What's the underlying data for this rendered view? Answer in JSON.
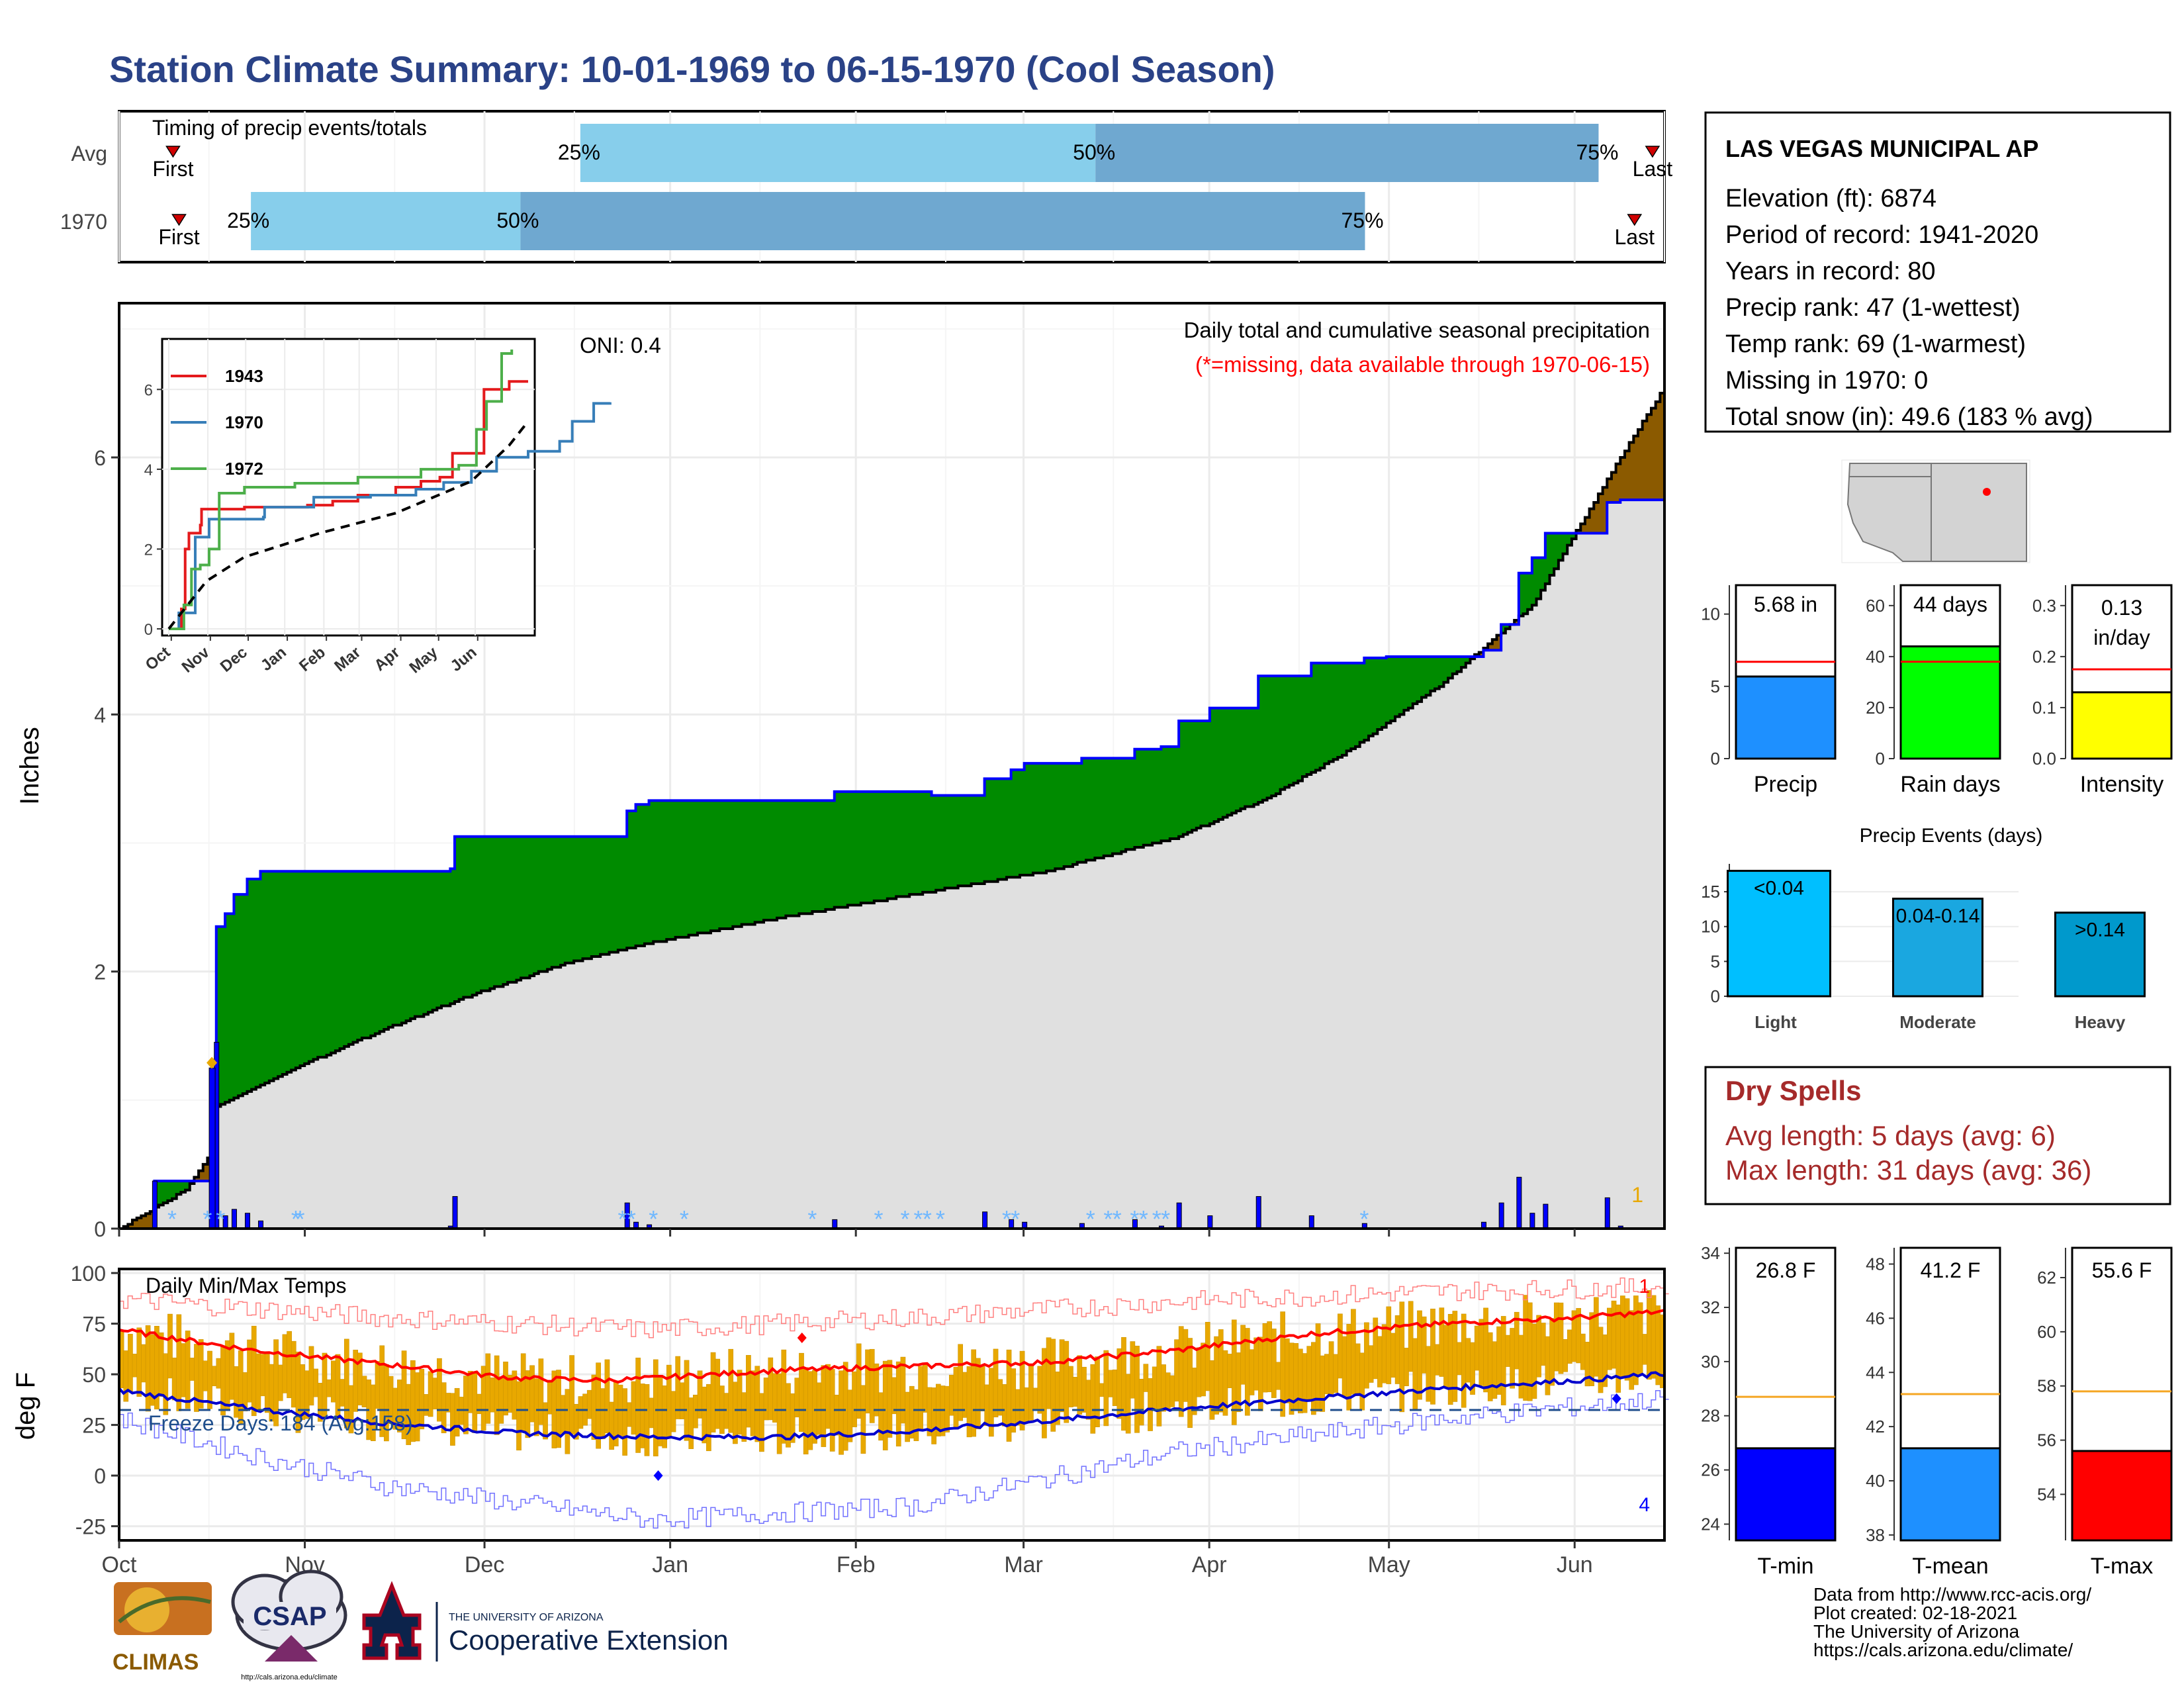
{
  "title": "Station Climate Summary: 10-01-1969 to 06-15-1970 (Cool Season)",
  "colors": {
    "title": "#2a4287",
    "light_blue": "#87ceeb",
    "mid_blue": "#6fa8d0",
    "green": "#008b00",
    "brown": "#8b5a00",
    "grey_fill": "#e0e0e0",
    "blue": "#0000ff",
    "red": "#ff0000",
    "orange": "#e8a800",
    "dry_red": "#a52a2a"
  },
  "timing": {
    "label": "Timing of precip events/totals",
    "rows": [
      {
        "name": "Avg",
        "first_label": "First",
        "last_label": "Last",
        "p25": "25%",
        "p50": "50%",
        "p75": "75%",
        "first_day": 9,
        "p25_day": 77,
        "p50_day": 163,
        "p75_day": 247,
        "last_day": 256
      },
      {
        "name": "1970",
        "first_label": "First",
        "last_label": "Last",
        "p25": "25%",
        "p50": "50%",
        "p75": "75%",
        "first_day": 10,
        "p25_day": 22,
        "p50_day": 67,
        "p75_day": 208,
        "last_day": 253
      }
    ]
  },
  "precip_panel": {
    "ylabel": "Inches",
    "yticks": [
      "0",
      "2",
      "4",
      "6"
    ],
    "oni": "ONI: 0.4",
    "title": "Daily total and cumulative seasonal precipitation",
    "subtitle": "(*=missing, data available through 1970-06-15)",
    "corner_count": "1"
  },
  "inset": {
    "yticks": [
      "0",
      "2",
      "4",
      "6"
    ],
    "xticks": [
      "Oct",
      "Nov",
      "Dec",
      "Jan",
      "Feb",
      "Mar",
      "Apr",
      "May",
      "Jun"
    ],
    "legend": [
      "1943",
      "1970",
      "1972"
    ]
  },
  "temp_panel": {
    "ylabel": "deg F",
    "title": "Daily Min/Max Temps",
    "yticks": [
      "100",
      "75",
      "50",
      "25",
      "0",
      "-25"
    ],
    "freeze": "Freeze Days: 184 (Avg:158)",
    "top_count": "1",
    "bottom_count": "4"
  },
  "xaxis": {
    "months": [
      "Oct",
      "Nov",
      "Dec",
      "Jan",
      "Feb",
      "Mar",
      "Apr",
      "May",
      "Jun"
    ]
  },
  "station": {
    "name": "LAS VEGAS MUNICIPAL AP",
    "lines": [
      "Elevation (ft): 6874",
      "Period of record: 1941-2020",
      "Years in record: 80",
      "Precip rank: 47 (1-wettest)",
      "Temp rank: 69 (1-warmest)",
      "Missing in 1970: 0",
      "Total snow (in): 49.6 (183 % avg)"
    ]
  },
  "mini_bars": [
    {
      "label": "Precip",
      "value_text": "5.68 in",
      "value": 5.68,
      "avg": 6.7,
      "ymax": 12,
      "yticks": [
        "0",
        "5",
        "10"
      ],
      "tickvals": [
        0,
        5,
        10
      ],
      "color": "#1e90ff"
    },
    {
      "label": "Rain days",
      "value_text": "44 days",
      "value": 44,
      "avg": 38,
      "ymax": 68,
      "yticks": [
        "0",
        "20",
        "40",
        "60"
      ],
      "tickvals": [
        0,
        20,
        40,
        60
      ],
      "color": "#00ff00"
    },
    {
      "label": "Intensity",
      "value_text": "0.13 in/day",
      "value": 0.13,
      "avg": 0.175,
      "ymax": 0.34,
      "yticks": [
        "0.0",
        "0.1",
        "0.2",
        "0.3"
      ],
      "tickvals": [
        0,
        0.1,
        0.2,
        0.3
      ],
      "color": "#ffff00"
    }
  ],
  "precip_events": {
    "title": "Precip Events (days)",
    "yticks": [
      "0",
      "5",
      "10",
      "15"
    ],
    "bars": [
      {
        "category": "Light",
        "label": "<0.04",
        "value": 18,
        "color": "#00bfff"
      },
      {
        "category": "Moderate",
        "label": "0.04-0.14",
        "value": 14,
        "color": "#1aa7e0"
      },
      {
        "category": "Heavy",
        "label": ">0.14",
        "value": 12,
        "color": "#0099cc"
      }
    ]
  },
  "dry_spells": {
    "title": "Dry Spells",
    "avg_line": "Avg length: 5 days (avg: 6)",
    "max_line": "Max length: 31 days (avg: 36)"
  },
  "temp_bars": [
    {
      "label": "T-min",
      "value_text": "26.8 F",
      "value": 26.8,
      "avg": 28.7,
      "ymin": 23.4,
      "ymax": 34.2,
      "yticks": [
        "24",
        "26",
        "28",
        "30",
        "32",
        "34"
      ],
      "tickvals": [
        24,
        26,
        28,
        30,
        32,
        34
      ],
      "color": "#0000ff"
    },
    {
      "label": "T-mean",
      "value_text": "41.2 F",
      "value": 41.2,
      "avg": 43.2,
      "ymin": 37.8,
      "ymax": 48.6,
      "yticks": [
        "38",
        "40",
        "42",
        "44",
        "46",
        "48"
      ],
      "tickvals": [
        38,
        40,
        42,
        44,
        46,
        48
      ],
      "color": "#1e90ff"
    },
    {
      "label": "T-max",
      "value_text": "55.6 F",
      "value": 55.6,
      "avg": 57.8,
      "ymin": 52.3,
      "ymax": 63.1,
      "yticks": [
        "54",
        "56",
        "58",
        "60",
        "62"
      ],
      "tickvals": [
        54,
        56,
        58,
        60,
        62
      ],
      "color": "#ff0000"
    }
  ],
  "footer": {
    "lines": [
      "Data from http://www.rcc-acis.org/",
      "Plot created: 02-18-2021",
      "The University of Arizona",
      "https://cals.arizona.edu/climate/"
    ],
    "climas": "CLIMAS",
    "csap": "CSAP",
    "csap_url": "http://cals.arizona.edu/climate",
    "ua_small": "THE UNIVERSITY OF ARIZONA",
    "ua_big": "Cooperative Extension"
  },
  "chart_data": [
    {
      "type": "area",
      "title": "Daily total and cumulative seasonal precipitation",
      "ylabel": "Inches",
      "ylim": [
        0,
        7.2
      ],
      "x": [
        "Oct",
        "Nov",
        "Dec",
        "Jan",
        "Feb",
        "Mar",
        "Apr",
        "May",
        "Jun"
      ],
      "series": [
        {
          "name": "1970",
          "points": [
            [
              0,
              0
            ],
            [
              8,
              0.37
            ],
            [
              20,
              0.37
            ],
            [
              21,
              0.9
            ],
            [
              22,
              2.35
            ],
            [
              24,
              2.45
            ],
            [
              26,
              2.6
            ],
            [
              29,
              2.72
            ],
            [
              32,
              2.78
            ],
            [
              75,
              2.8
            ],
            [
              76,
              3.05
            ],
            [
              114,
              3.05
            ],
            [
              115,
              3.25
            ],
            [
              117,
              3.3
            ],
            [
              120,
              3.33
            ],
            [
              161,
              3.33
            ],
            [
              162,
              3.4
            ],
            [
              184,
              3.37
            ],
            [
              196,
              3.5
            ],
            [
              202,
              3.57
            ],
            [
              205,
              3.62
            ],
            [
              218,
              3.66
            ],
            [
              230,
              3.73
            ],
            [
              236,
              3.75
            ],
            [
              240,
              3.95
            ],
            [
              247,
              4.05
            ],
            [
              258,
              4.3
            ],
            [
              270,
              4.4
            ],
            [
              282,
              4.44
            ],
            [
              287,
              4.45
            ],
            [
              306,
              4.45
            ],
            [
              309,
              4.5
            ],
            [
              313,
              4.7
            ],
            [
              317,
              5.1
            ],
            [
              320,
              5.22
            ],
            [
              323,
              5.41
            ],
            [
              331,
              5.41
            ],
            [
              337,
              5.65
            ],
            [
              340,
              5.67
            ],
            [
              350,
              5.68
            ]
          ]
        },
        {
          "name": "Avg",
          "points": [
            [
              0,
              0
            ],
            [
              15,
              0.3
            ],
            [
              21,
              0.6
            ],
            [
              22,
              0.95
            ],
            [
              40,
              1.25
            ],
            [
              60,
              1.55
            ],
            [
              80,
              1.82
            ],
            [
              100,
              2.05
            ],
            [
              120,
              2.22
            ],
            [
              150,
              2.42
            ],
            [
              180,
              2.6
            ],
            [
              210,
              2.78
            ],
            [
              240,
              3.05
            ],
            [
              260,
              3.35
            ],
            [
              280,
              3.75
            ],
            [
              300,
              4.25
            ],
            [
              320,
              4.85
            ],
            [
              340,
              6.0
            ],
            [
              350,
              6.55
            ]
          ]
        }
      ]
    },
    {
      "type": "line",
      "title": "",
      "ylim": [
        0,
        7
      ],
      "x": [
        "Oct",
        "Nov",
        "Dec",
        "Jan",
        "Feb",
        "Mar",
        "Apr",
        "May",
        "Jun"
      ],
      "series": [
        {
          "name": "1943",
          "points": [
            [
              0,
              0
            ],
            [
              10,
              0.5
            ],
            [
              13,
              2.0
            ],
            [
              16,
              2.4
            ],
            [
              25,
              2.6
            ],
            [
              26,
              3.0
            ],
            [
              60,
              3.05
            ],
            [
              110,
              3.1
            ],
            [
              130,
              3.2
            ],
            [
              150,
              3.35
            ],
            [
              180,
              3.55
            ],
            [
              200,
              3.7
            ],
            [
              215,
              3.8
            ],
            [
              225,
              4.4
            ],
            [
              236,
              4.4
            ],
            [
              250,
              6.0
            ],
            [
              270,
              6.2
            ],
            [
              285,
              6.2
            ]
          ]
        },
        {
          "name": "1970",
          "points": [
            [
              0,
              0
            ],
            [
              8,
              0.4
            ],
            [
              21,
              2.3
            ],
            [
              32,
              2.75
            ],
            [
              75,
              2.8
            ],
            [
              76,
              3.05
            ],
            [
              115,
              3.3
            ],
            [
              160,
              3.35
            ],
            [
              196,
              3.5
            ],
            [
              218,
              3.67
            ],
            [
              240,
              3.95
            ],
            [
              260,
              4.3
            ],
            [
              285,
              4.45
            ],
            [
              310,
              4.7
            ],
            [
              320,
              5.2
            ],
            [
              337,
              5.65
            ],
            [
              350,
              5.68
            ]
          ]
        },
        {
          "name": "1972",
          "points": [
            [
              0,
              0
            ],
            [
              12,
              0.6
            ],
            [
              18,
              1.5
            ],
            [
              25,
              1.6
            ],
            [
              32,
              2.0
            ],
            [
              40,
              3.4
            ],
            [
              60,
              3.55
            ],
            [
              100,
              3.65
            ],
            [
              150,
              3.8
            ],
            [
              200,
              4.0
            ],
            [
              230,
              4.1
            ],
            [
              244,
              5.0
            ],
            [
              252,
              5.7
            ],
            [
              264,
              6.9
            ],
            [
              272,
              7.0
            ]
          ]
        },
        {
          "name": "Avg",
          "points": [
            [
              0,
              0
            ],
            [
              30,
              1.2
            ],
            [
              60,
              1.8
            ],
            [
              120,
              2.4
            ],
            [
              180,
              2.9
            ],
            [
              240,
              3.7
            ],
            [
              270,
              4.6
            ],
            [
              285,
              5.2
            ]
          ]
        }
      ]
    },
    {
      "type": "line",
      "title": "Daily Min/Max Temps",
      "ylabel": "deg F",
      "ylim": [
        -32,
        102
      ],
      "x": [
        "Oct",
        "Nov",
        "Dec",
        "Jan",
        "Feb",
        "Mar",
        "Apr",
        "May",
        "Jun"
      ],
      "series": [
        {
          "name": "Avg max",
          "points": [
            [
              0,
              72
            ],
            [
              30,
              62
            ],
            [
              60,
              55
            ],
            [
              90,
              48
            ],
            [
              110,
              47
            ],
            [
              120,
              48
            ],
            [
              150,
              52
            ],
            [
              180,
              54
            ],
            [
              210,
              56
            ],
            [
              240,
              62
            ],
            [
              270,
              70
            ],
            [
              300,
              75
            ],
            [
              330,
              78
            ],
            [
              350,
              81
            ]
          ]
        },
        {
          "name": "Avg min",
          "points": [
            [
              0,
              42
            ],
            [
              30,
              33
            ],
            [
              60,
              26
            ],
            [
              90,
              21
            ],
            [
              120,
              19
            ],
            [
              150,
              19
            ],
            [
              180,
              22
            ],
            [
              210,
              27
            ],
            [
              240,
              33
            ],
            [
              270,
              38
            ],
            [
              300,
              43
            ],
            [
              330,
              47
            ],
            [
              350,
              50
            ]
          ]
        },
        {
          "name": "Record high",
          "points": [
            [
              0,
              87
            ],
            [
              60,
              78
            ],
            [
              120,
              72
            ],
            [
              180,
              78
            ],
            [
              240,
              86
            ],
            [
              300,
              91
            ],
            [
              350,
              93
            ]
          ]
        },
        {
          "name": "Record low",
          "points": [
            [
              0,
              28
            ],
            [
              30,
              10
            ],
            [
              60,
              -5
            ],
            [
              120,
              -22
            ],
            [
              180,
              -15
            ],
            [
              240,
              12
            ],
            [
              300,
              28
            ],
            [
              350,
              38
            ]
          ]
        }
      ]
    }
  ]
}
